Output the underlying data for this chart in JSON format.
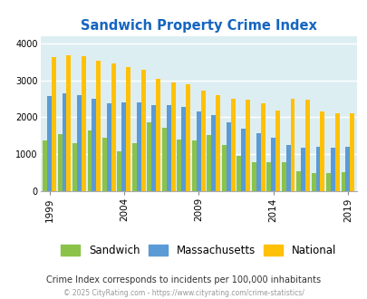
{
  "title": "Sandwich Property Crime Index",
  "title_color": "#1565c0",
  "years": [
    1999,
    2000,
    2001,
    2002,
    2003,
    2004,
    2005,
    2006,
    2007,
    2008,
    2009,
    2010,
    2011,
    2012,
    2013,
    2014,
    2015,
    2016,
    2017,
    2018,
    2019
  ],
  "sandwich": [
    1380,
    1550,
    1300,
    1650,
    1450,
    1070,
    1290,
    1870,
    1720,
    1410,
    1380,
    1520,
    1260,
    960,
    790,
    780,
    780,
    540,
    500,
    500,
    520
  ],
  "massachusetts": [
    2580,
    2640,
    2600,
    2490,
    2380,
    2400,
    2400,
    2320,
    2340,
    2280,
    2150,
    2060,
    1875,
    1700,
    1570,
    1450,
    1260,
    1190,
    1200,
    1190,
    1200
  ],
  "national": [
    3630,
    3670,
    3640,
    3530,
    3450,
    3360,
    3290,
    3050,
    2950,
    2890,
    2730,
    2610,
    2510,
    2480,
    2390,
    2180,
    2500,
    2480,
    2160,
    2100,
    2100
  ],
  "sandwich_color": "#8bc34a",
  "massachusetts_color": "#5b9bd5",
  "national_color": "#ffc107",
  "bg_color": "#ddeef2",
  "note": "Crime Index corresponds to incidents per 100,000 inhabitants",
  "footer": "© 2025 CityRating.com - https://www.cityrating.com/crime-statistics/",
  "legend_labels": [
    "Sandwich",
    "Massachusetts",
    "National"
  ],
  "xtick_years": [
    1999,
    2004,
    2009,
    2014,
    2019
  ]
}
